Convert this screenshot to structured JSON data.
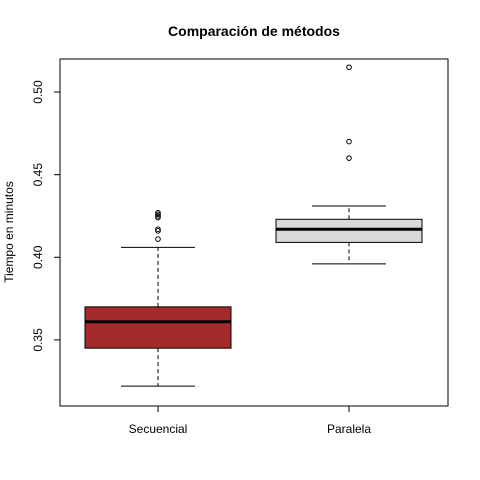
{
  "chart_data": {
    "type": "box",
    "title": "Comparación de métodos",
    "xlabel": "",
    "ylabel": "Tiempo en minutos",
    "ylim": [
      0.31,
      0.52
    ],
    "y_ticks": [
      0.35,
      0.4,
      0.45,
      0.5
    ],
    "y_tick_labels": [
      "0.35",
      "0.40",
      "0.45",
      "0.50"
    ],
    "grid": false,
    "legend": "none",
    "categories": [
      "Secuencial",
      "Paralela"
    ],
    "boxes": [
      {
        "name": "Secuencial",
        "color": "#a52a2a",
        "whisker_low": 0.322,
        "q1": 0.345,
        "median": 0.361,
        "q3": 0.37,
        "whisker_high": 0.406,
        "outliers": [
          0.411,
          0.416,
          0.417,
          0.424,
          0.425,
          0.426,
          0.427
        ]
      },
      {
        "name": "Paralela",
        "color": "#d9d9d9",
        "whisker_low": 0.396,
        "q1": 0.409,
        "median": 0.417,
        "q3": 0.423,
        "whisker_high": 0.431,
        "outliers": [
          0.46,
          0.47,
          0.515
        ]
      }
    ]
  }
}
